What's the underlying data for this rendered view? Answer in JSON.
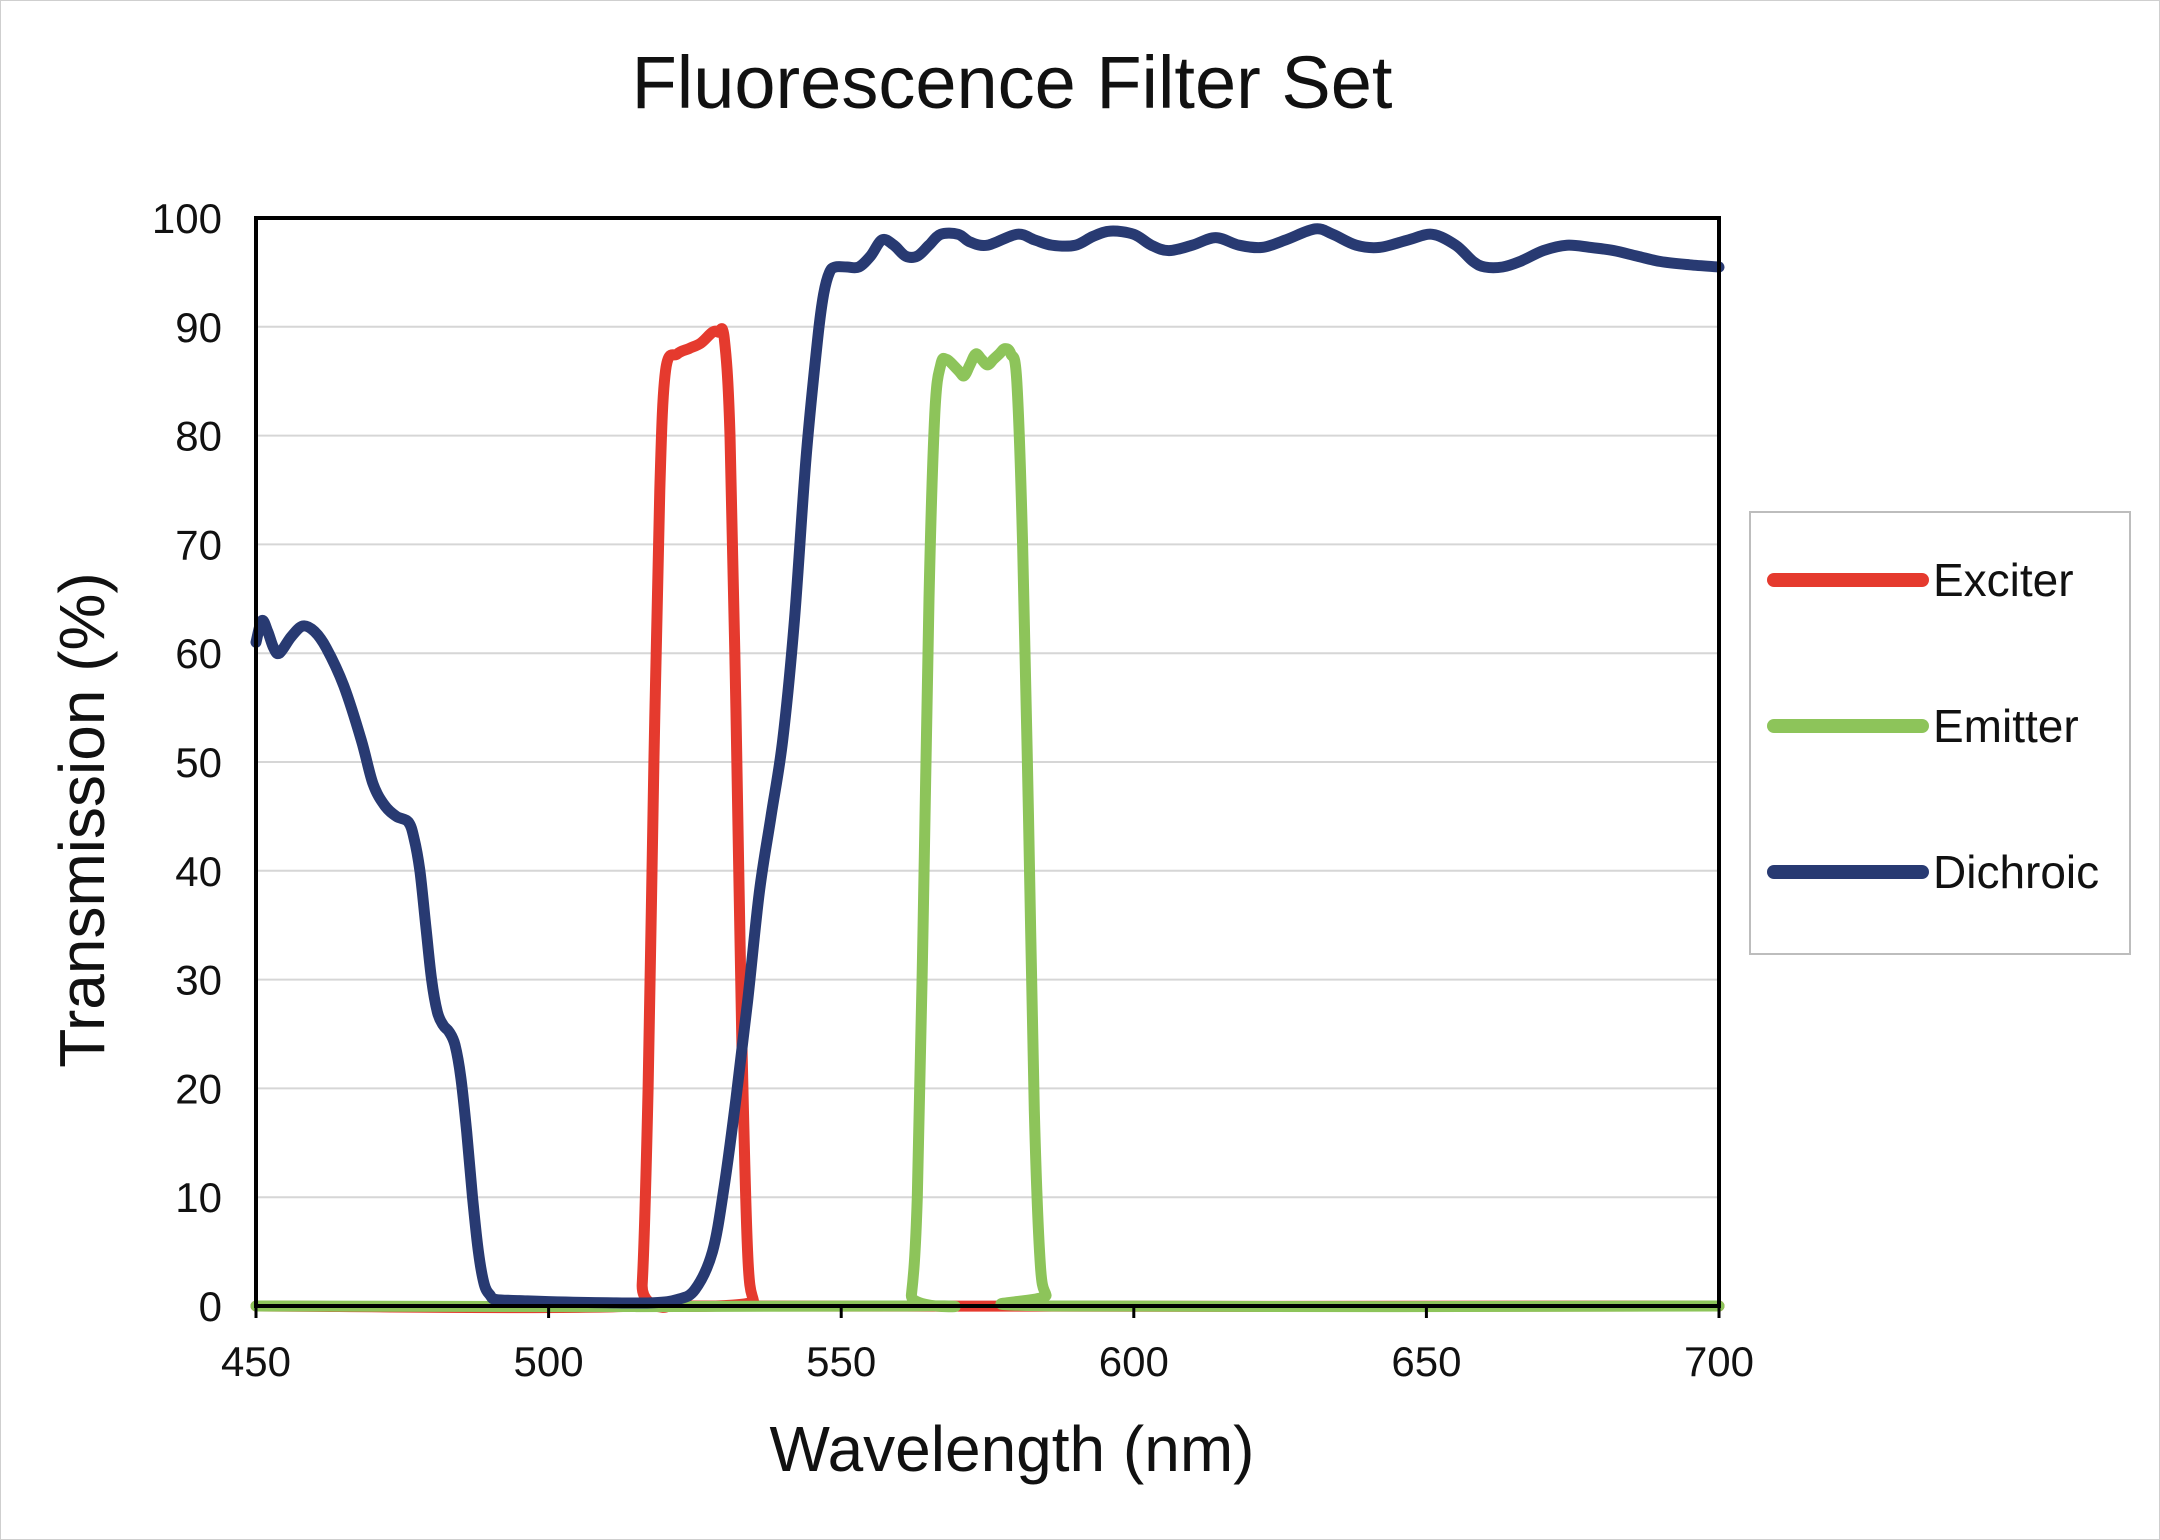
{
  "chart_data": {
    "type": "line",
    "title": "Fluorescence Filter Set",
    "xlabel": "Wavelength (nm)",
    "ylabel": "Transmission (%)",
    "xlim": [
      450,
      700
    ],
    "ylim": [
      0,
      100
    ],
    "x_ticks": [
      450,
      500,
      550,
      600,
      650,
      700
    ],
    "y_ticks": [
      0,
      10,
      20,
      30,
      40,
      50,
      60,
      70,
      80,
      90,
      100
    ],
    "grid": "horizontal",
    "legend_position": "right",
    "series": [
      {
        "name": "Exciter",
        "color": "#e53a2e",
        "points": [
          [
            450,
            0
          ],
          [
            515,
            0
          ],
          [
            516,
            2
          ],
          [
            517,
            20
          ],
          [
            518,
            50
          ],
          [
            519,
            75
          ],
          [
            520,
            86
          ],
          [
            522,
            87.5
          ],
          [
            524,
            88
          ],
          [
            526,
            88.5
          ],
          [
            528,
            89.5
          ],
          [
            529,
            89.5
          ],
          [
            530,
            89
          ],
          [
            531,
            80
          ],
          [
            532,
            55
          ],
          [
            533,
            25
          ],
          [
            534,
            5
          ],
          [
            535,
            0.5
          ],
          [
            536,
            0
          ],
          [
            700,
            0
          ]
        ]
      },
      {
        "name": "Emitter",
        "color": "#8dc45a",
        "points": [
          [
            450,
            0
          ],
          [
            561,
            0
          ],
          [
            562,
            1
          ],
          [
            563,
            10
          ],
          [
            564,
            35
          ],
          [
            565,
            65
          ],
          [
            566,
            82
          ],
          [
            567,
            86.5
          ],
          [
            568,
            87
          ],
          [
            570,
            86
          ],
          [
            571,
            85.5
          ],
          [
            572,
            86.5
          ],
          [
            573,
            87.5
          ],
          [
            574,
            87
          ],
          [
            575,
            86.5
          ],
          [
            576,
            87
          ],
          [
            577,
            87.5
          ],
          [
            578,
            88
          ],
          [
            579,
            87.5
          ],
          [
            580,
            85
          ],
          [
            581,
            70
          ],
          [
            582,
            45
          ],
          [
            583,
            18
          ],
          [
            584,
            4
          ],
          [
            585,
            1
          ],
          [
            586,
            0
          ],
          [
            700,
            0
          ]
        ]
      },
      {
        "name": "Dichroic",
        "color": "#283a72",
        "points": [
          [
            450,
            61
          ],
          [
            451,
            63
          ],
          [
            452,
            62
          ],
          [
            453,
            60.5
          ],
          [
            454,
            60
          ],
          [
            456,
            61.5
          ],
          [
            458,
            62.5
          ],
          [
            460,
            62
          ],
          [
            462,
            60.5
          ],
          [
            465,
            57
          ],
          [
            468,
            52
          ],
          [
            470,
            48
          ],
          [
            472,
            46
          ],
          [
            474,
            45
          ],
          [
            476,
            44.5
          ],
          [
            477,
            43
          ],
          [
            478,
            40
          ],
          [
            479,
            35
          ],
          [
            480,
            30
          ],
          [
            481,
            27
          ],
          [
            482,
            25.8
          ],
          [
            483,
            25.2
          ],
          [
            484,
            24
          ],
          [
            485,
            21
          ],
          [
            486,
            16
          ],
          [
            487,
            10
          ],
          [
            488,
            5
          ],
          [
            489,
            2
          ],
          [
            490,
            1
          ],
          [
            491,
            0.6
          ],
          [
            495,
            0.5
          ],
          [
            500,
            0.4
          ],
          [
            510,
            0.3
          ],
          [
            518,
            0.3
          ],
          [
            522,
            0.6
          ],
          [
            525,
            1.5
          ],
          [
            528,
            5
          ],
          [
            530,
            11
          ],
          [
            532,
            19
          ],
          [
            534,
            28
          ],
          [
            536,
            38
          ],
          [
            538,
            45
          ],
          [
            540,
            52
          ],
          [
            542,
            63
          ],
          [
            544,
            78
          ],
          [
            546,
            89
          ],
          [
            547,
            93
          ],
          [
            548,
            95
          ],
          [
            549,
            95.5
          ],
          [
            551,
            95.5
          ],
          [
            553,
            95.5
          ],
          [
            555,
            96.5
          ],
          [
            557,
            98
          ],
          [
            559,
            97.5
          ],
          [
            561,
            96.5
          ],
          [
            563,
            96.5
          ],
          [
            565,
            97.5
          ],
          [
            567,
            98.5
          ],
          [
            570,
            98.5
          ],
          [
            572,
            97.8
          ],
          [
            575,
            97.5
          ],
          [
            580,
            98.5
          ],
          [
            583,
            98
          ],
          [
            586,
            97.5
          ],
          [
            590,
            97.5
          ],
          [
            593,
            98.3
          ],
          [
            596,
            98.8
          ],
          [
            600,
            98.5
          ],
          [
            603,
            97.5
          ],
          [
            606,
            97
          ],
          [
            610,
            97.5
          ],
          [
            614,
            98.2
          ],
          [
            618,
            97.5
          ],
          [
            622,
            97.3
          ],
          [
            626,
            98
          ],
          [
            631,
            99
          ],
          [
            634,
            98.5
          ],
          [
            638,
            97.5
          ],
          [
            642,
            97.3
          ],
          [
            647,
            98
          ],
          [
            651,
            98.5
          ],
          [
            655,
            97.5
          ],
          [
            658,
            96
          ],
          [
            660,
            95.5
          ],
          [
            663,
            95.5
          ],
          [
            666,
            96
          ],
          [
            670,
            97
          ],
          [
            674,
            97.5
          ],
          [
            678,
            97.3
          ],
          [
            682,
            97
          ],
          [
            686,
            96.5
          ],
          [
            690,
            96
          ],
          [
            695,
            95.7
          ],
          [
            700,
            95.5
          ]
        ]
      }
    ]
  }
}
